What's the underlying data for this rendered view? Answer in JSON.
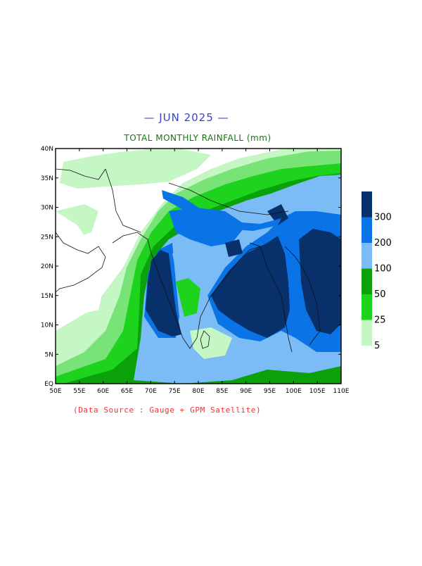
{
  "header": {
    "month_title": "— JUN 2025 —",
    "subtitle": "TOTAL MONTHLY RAINFALL (mm)"
  },
  "map": {
    "lat_labels": [
      "40N",
      "35N",
      "30N",
      "25N",
      "20N",
      "15N",
      "10N",
      "5N",
      "EQ"
    ],
    "lon_labels": [
      "50E",
      "55E",
      "60E",
      "65E",
      "70E",
      "75E",
      "80E",
      "85E",
      "90E",
      "95E",
      "100E",
      "105E",
      "110E"
    ],
    "lon_range": [
      50,
      110
    ],
    "lat_range": [
      0,
      40
    ]
  },
  "legend": {
    "levels": [
      "5",
      "25",
      "50",
      "100",
      "200",
      "300"
    ],
    "colors": [
      "#c4f7c4",
      "#1ed31e",
      "#0ba10b",
      "#7cbcf6",
      "#0a73e6",
      "#08306b"
    ]
  },
  "palette": {
    "lightest_green": "#c4f7c4",
    "light_green": "#78e478",
    "green": "#1ed31e",
    "dark_green": "#0ba10b",
    "light_blue": "#7cbcf6",
    "blue": "#0a73e6",
    "navy": "#08306b"
  },
  "footer": {
    "source": "(Data Source : Gauge + GPM Satellite)"
  }
}
